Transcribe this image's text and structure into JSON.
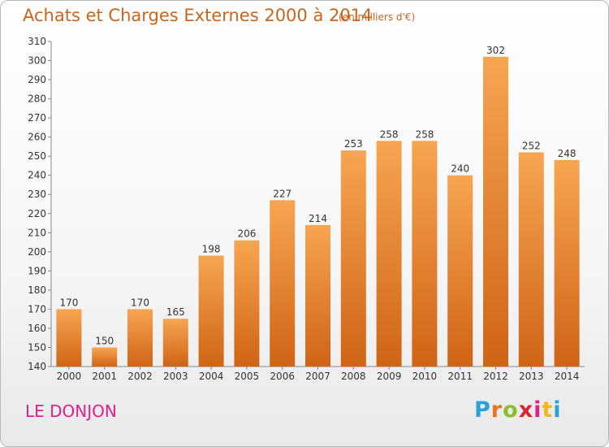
{
  "title": "Achats et Charges Externes 2000 à 2014",
  "subtitle": "(en milliers d'€)",
  "commune": "LE DONJON",
  "logo": {
    "letters": [
      "P",
      "r",
      "o",
      "x",
      "i",
      "t",
      "i"
    ],
    "colors": [
      "#2aa2d8",
      "#e9731f",
      "#8bbd2c",
      "#d9233a",
      "#e0208a",
      "#f1b91b",
      "#2aa2d8"
    ]
  },
  "colors": {
    "bar_light": "#f7a552",
    "bar_dark": "#cf6415",
    "title": "#c8651e",
    "commune": "#e0208a"
  },
  "chart_data": {
    "type": "bar",
    "title": "Achats et Charges Externes 2000 à 2014",
    "subtitle": "(en milliers d'€)",
    "xlabel": "",
    "ylabel": "",
    "categories": [
      "2000",
      "2001",
      "2002",
      "2003",
      "2004",
      "2005",
      "2006",
      "2007",
      "2008",
      "2009",
      "2010",
      "2011",
      "2012",
      "2013",
      "2014"
    ],
    "values": [
      170,
      150,
      170,
      165,
      198,
      206,
      227,
      214,
      253,
      258,
      258,
      240,
      302,
      252,
      248
    ],
    "ylim": [
      140,
      310
    ],
    "yticks": [
      140,
      150,
      160,
      170,
      180,
      190,
      200,
      210,
      220,
      230,
      240,
      250,
      260,
      270,
      280,
      290,
      300,
      310
    ],
    "grid": false,
    "legend": "none"
  }
}
